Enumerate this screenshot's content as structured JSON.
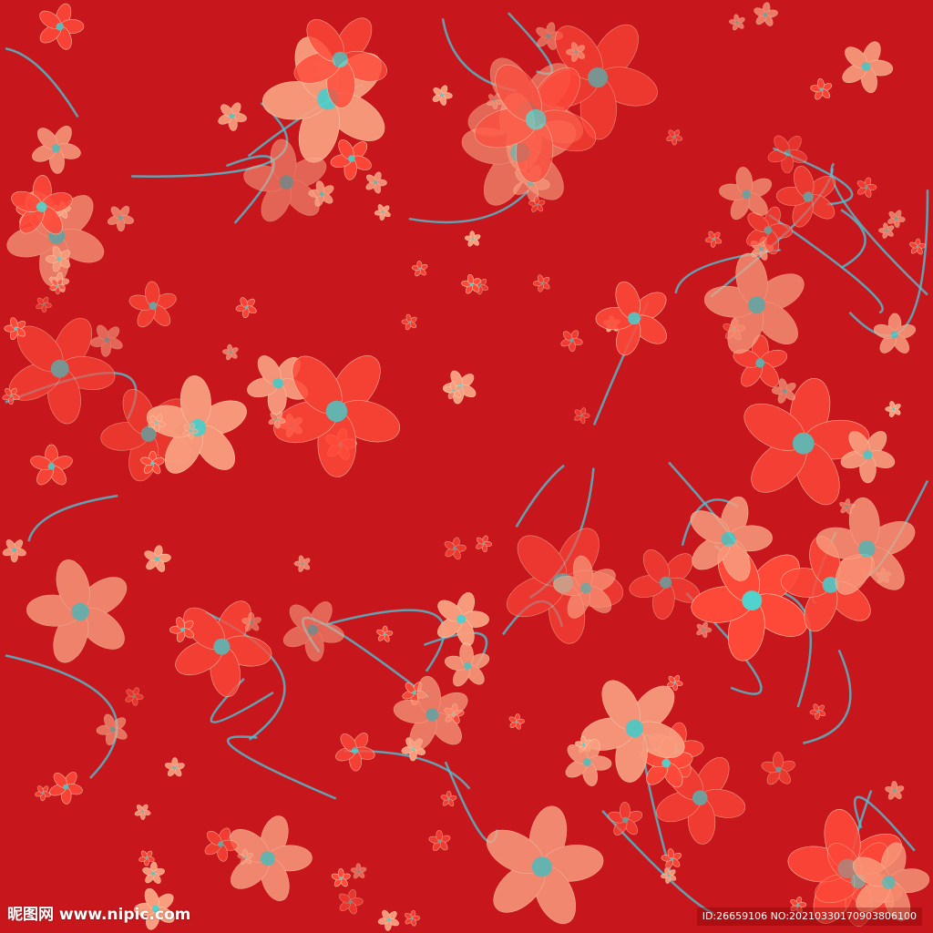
{
  "image": {
    "description_colors": {
      "background": "#c8171c",
      "petal": "#ff4a3a",
      "petal_light": "#f9a080",
      "center": "#4fd6d0",
      "stem": "#4cc3d6"
    }
  },
  "watermark": {
    "logo_text": "昵图网 www.nipic.com",
    "id_text": "ID:26659106 NO:20210330170903806100"
  }
}
